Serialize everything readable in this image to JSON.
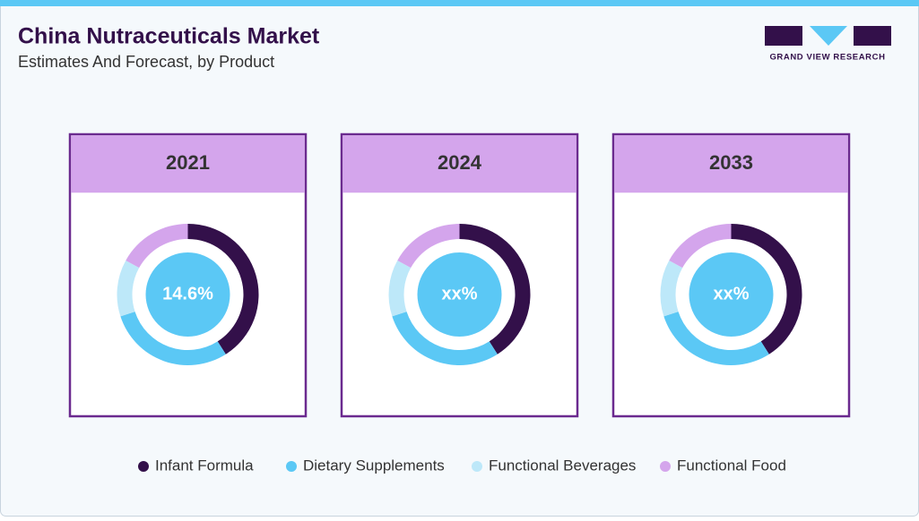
{
  "header": {
    "title": "China Nutraceuticals Market",
    "subtitle": "Estimates And Forecast, by Product",
    "logo_text": "GRAND VIEW RESEARCH"
  },
  "chart_data": [
    {
      "type": "donut",
      "title": "2021",
      "center_label": "14.6%",
      "categories": [
        "Infant Formula",
        "Dietary Supplements",
        "Functional Beverages",
        "Functional Food"
      ],
      "values": [
        41,
        29,
        13,
        17
      ],
      "colors": [
        "#33104a",
        "#5bc8f5",
        "#bde8f9",
        "#d4a5ec"
      ]
    },
    {
      "type": "donut",
      "title": "2024",
      "center_label": "xx%",
      "categories": [
        "Infant Formula",
        "Dietary Supplements",
        "Functional Beverages",
        "Functional Food"
      ],
      "values": [
        41,
        29,
        13,
        17
      ],
      "colors": [
        "#33104a",
        "#5bc8f5",
        "#bde8f9",
        "#d4a5ec"
      ]
    },
    {
      "type": "donut",
      "title": "2033",
      "center_label": "xx%",
      "categories": [
        "Infant Formula",
        "Dietary Supplements",
        "Functional Beverages",
        "Functional Food"
      ],
      "values": [
        41,
        29,
        13,
        17
      ],
      "colors": [
        "#33104a",
        "#5bc8f5",
        "#bde8f9",
        "#d4a5ec"
      ]
    }
  ]
}
